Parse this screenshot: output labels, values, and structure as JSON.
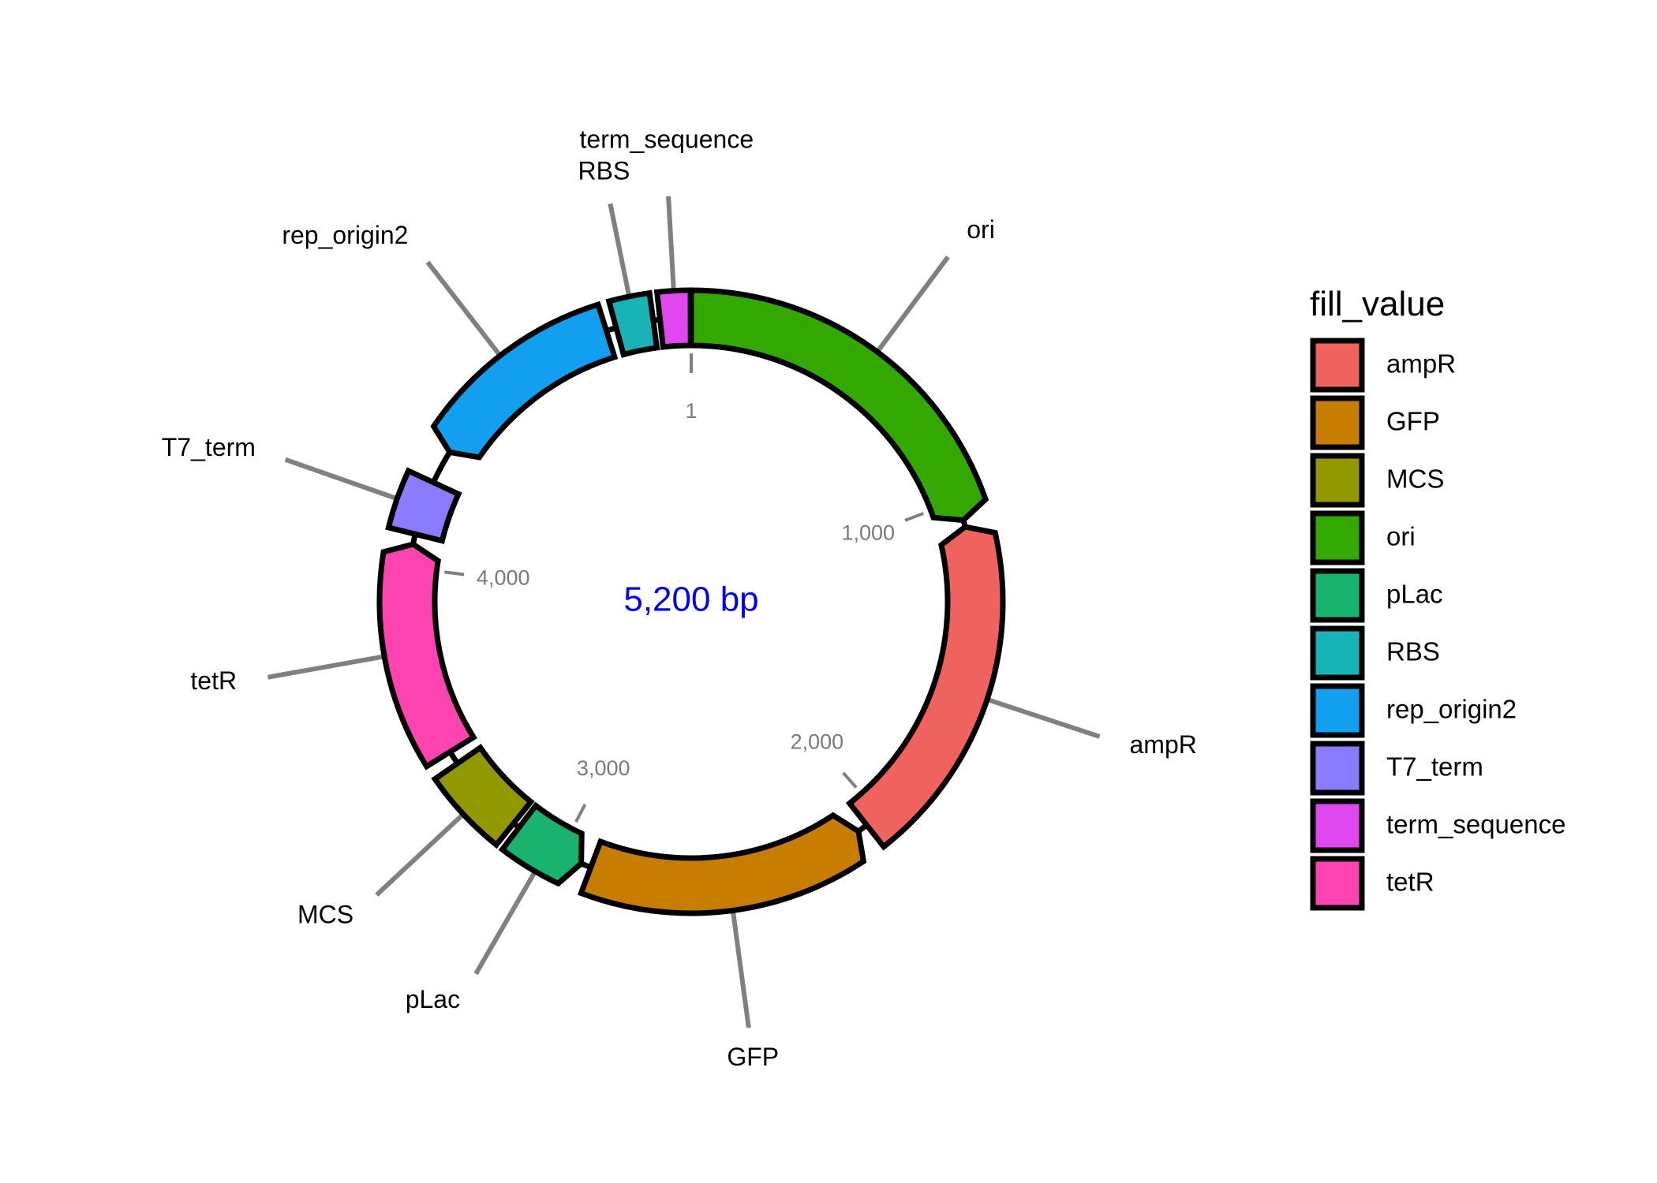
{
  "plasmid": {
    "total_length_bp": 5200,
    "center_label": "5,200 bp",
    "center_label_color": "#0000ff",
    "backbone_color": "#000000",
    "features": [
      {
        "name": "ampR",
        "start": 1080,
        "end": 2050,
        "fill": "#f0625d",
        "direction": "reverse",
        "label": "ampR"
      },
      {
        "name": "GFP",
        "start": 2080,
        "end": 2900,
        "fill": "#c77d00",
        "direction": "reverse",
        "label": "GFP"
      },
      {
        "name": "MCS",
        "start": 3160,
        "end": 3400,
        "fill": "#929900",
        "direction": "none",
        "label": "MCS"
      },
      {
        "name": "ori",
        "start": 1,
        "end": 1060,
        "fill": "#32a800",
        "direction": "forward",
        "label": "ori"
      },
      {
        "name": "pLac",
        "start": 2930,
        "end": 3140,
        "fill": "#18b46e",
        "direction": "reverse",
        "label": "pLac"
      },
      {
        "name": "RBS",
        "start": 4980,
        "end": 5090,
        "fill": "#18b3b6",
        "direction": "none",
        "label": "RBS"
      },
      {
        "name": "rep_origin2",
        "start": 4360,
        "end": 4950,
        "fill": "#139ff0",
        "direction": "reverse",
        "label": "rep_origin2"
      },
      {
        "name": "T7_term",
        "start": 4100,
        "end": 4260,
        "fill": "#8a7bff",
        "direction": "none",
        "label": "T7_term"
      },
      {
        "name": "term_sequence",
        "start": 5110,
        "end": 5199,
        "fill": "#df48ef",
        "direction": "none",
        "label": "term_sequence"
      },
      {
        "name": "tetR",
        "start": 3440,
        "end": 4070,
        "fill": "#fd43b0",
        "direction": "forward",
        "label": "tetR"
      }
    ],
    "ticks": [
      {
        "pos": 1,
        "label": "1"
      },
      {
        "pos": 1000,
        "label": "1,000"
      },
      {
        "pos": 2000,
        "label": "2,000"
      },
      {
        "pos": 3000,
        "label": "3,000"
      },
      {
        "pos": 4000,
        "label": "4,000"
      }
    ]
  },
  "legend": {
    "title": "fill_value",
    "items": [
      {
        "label": "ampR",
        "fill": "#f0625d"
      },
      {
        "label": "GFP",
        "fill": "#c77d00"
      },
      {
        "label": "MCS",
        "fill": "#929900"
      },
      {
        "label": "ori",
        "fill": "#32a800"
      },
      {
        "label": "pLac",
        "fill": "#18b46e"
      },
      {
        "label": "RBS",
        "fill": "#18b3b6"
      },
      {
        "label": "rep_origin2",
        "fill": "#139ff0"
      },
      {
        "label": "T7_term",
        "fill": "#8a7bff"
      },
      {
        "label": "term_sequence",
        "fill": "#df48ef"
      },
      {
        "label": "tetR",
        "fill": "#fd43b0"
      }
    ]
  }
}
